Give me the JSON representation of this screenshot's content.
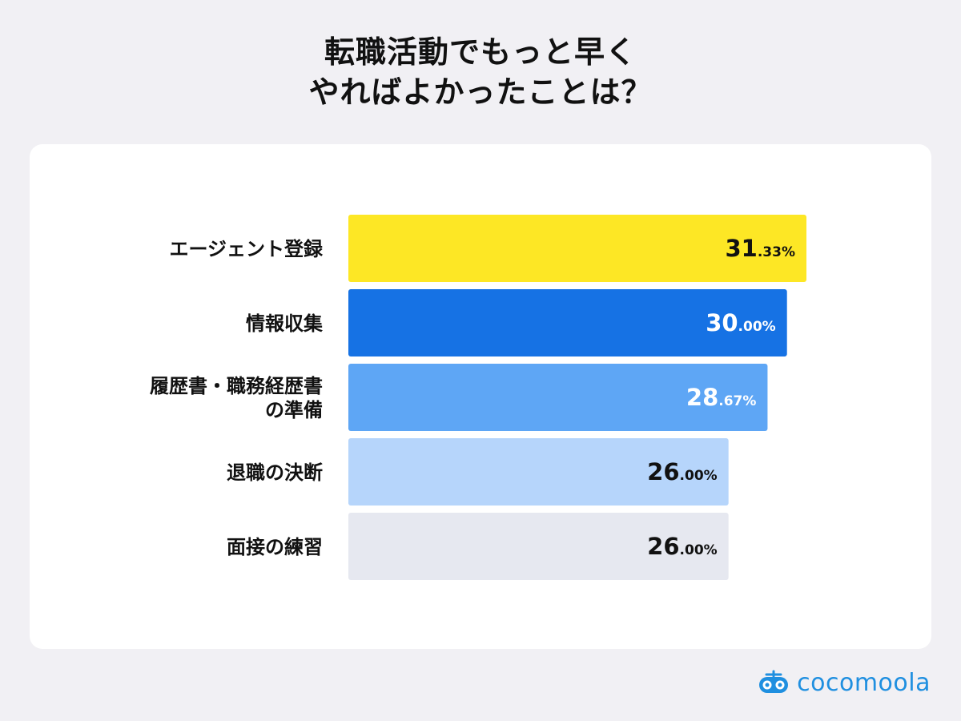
{
  "title": {
    "line1": "転職活動でもっと早く",
    "line2": "やればよかったことは？"
  },
  "brand": {
    "name": "cocomoola",
    "color": "#1f8fe0",
    "icon": "cocomoola-logo-icon"
  },
  "chart_data": {
    "type": "bar",
    "orientation": "horizontal",
    "title": "転職活動でもっと早くやればよかったことは？",
    "categories": [
      [
        "エージェント登録"
      ],
      [
        "情報収集"
      ],
      [
        "履歴書・職務経歴書",
        "の準備"
      ],
      [
        "退職の決断"
      ],
      [
        "面接の練習"
      ]
    ],
    "values": [
      31.33,
      30.0,
      28.67,
      26.0,
      26.0
    ],
    "value_labels": [
      {
        "int": "31",
        "dec": ".33%"
      },
      {
        "int": "30",
        "dec": ".00%"
      },
      {
        "int": "28",
        "dec": ".67%"
      },
      {
        "int": "26",
        "dec": ".00%"
      },
      {
        "int": "26",
        "dec": ".00%"
      }
    ],
    "bar_colors": [
      "#fde725",
      "#1672e4",
      "#5ea6f5",
      "#b6d5fb",
      "#e6e8f0"
    ],
    "label_colors": [
      "#111111",
      "#ffffff",
      "#ffffff",
      "#111111",
      "#111111"
    ],
    "xlim": [
      0,
      31.33
    ],
    "grid": false,
    "legend": "none",
    "xlabel": "",
    "ylabel": ""
  }
}
